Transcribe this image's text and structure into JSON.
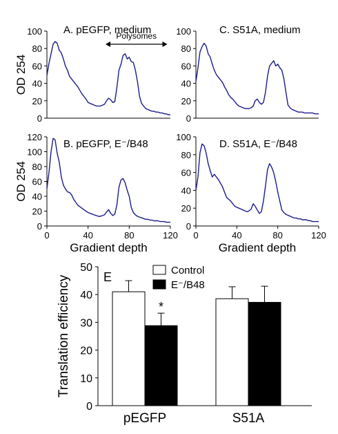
{
  "chart_data": [
    {
      "panel": "A",
      "type": "line",
      "title": "A. pEGFP, medium",
      "ylabel": "OD 254",
      "xlabel": "",
      "xlim": [
        0,
        120
      ],
      "ylim": [
        0,
        100
      ],
      "yticks": [
        0,
        20,
        40,
        60,
        80,
        100
      ],
      "xticks": [],
      "annotation": "Polysomes",
      "annotation_range": [
        57,
        117
      ],
      "line_color": "#1a1a8c",
      "x": [
        0,
        2,
        4,
        6,
        8,
        10,
        12,
        14,
        16,
        18,
        20,
        22,
        24,
        26,
        28,
        30,
        32,
        34,
        36,
        38,
        40,
        42,
        44,
        46,
        48,
        50,
        52,
        54,
        56,
        58,
        60,
        62,
        64,
        66,
        68,
        70,
        72,
        74,
        76,
        78,
        80,
        82,
        84,
        86,
        88,
        90,
        92,
        94,
        96,
        98,
        100,
        102,
        104,
        106,
        108,
        110,
        112,
        114,
        116,
        118,
        120
      ],
      "y": [
        49,
        63,
        74,
        85,
        88,
        86,
        78,
        75,
        68,
        60,
        55,
        48,
        45,
        42,
        39,
        36,
        32,
        28,
        25,
        22,
        18,
        17,
        16,
        15,
        14,
        14,
        14,
        15,
        16,
        20,
        23,
        21,
        18,
        19,
        35,
        55,
        62,
        72,
        74,
        68,
        70,
        65,
        64,
        55,
        42,
        25,
        17,
        14,
        11,
        10,
        9,
        8,
        8,
        7,
        7,
        6,
        6,
        5,
        5,
        4,
        4
      ]
    },
    {
      "panel": "C",
      "type": "line",
      "title": "C. S51A, medium",
      "ylabel": "",
      "xlabel": "",
      "xlim": [
        0,
        120
      ],
      "ylim": [
        0,
        100
      ],
      "yticks": [
        0,
        20,
        40,
        60,
        80,
        100
      ],
      "xticks": [],
      "line_color": "#1a1a8c",
      "x": [
        0,
        2,
        4,
        6,
        8,
        10,
        12,
        14,
        16,
        18,
        20,
        22,
        24,
        26,
        28,
        30,
        32,
        34,
        36,
        38,
        40,
        42,
        44,
        46,
        48,
        50,
        52,
        54,
        56,
        58,
        60,
        62,
        64,
        66,
        68,
        70,
        72,
        74,
        76,
        78,
        80,
        82,
        84,
        86,
        88,
        90,
        92,
        94,
        96,
        98,
        100,
        102,
        104,
        106,
        108,
        110,
        112,
        114,
        116,
        118,
        120
      ],
      "y": [
        42,
        58,
        76,
        82,
        86,
        83,
        74,
        70,
        62,
        55,
        50,
        47,
        44,
        41,
        36,
        32,
        27,
        24,
        22,
        19,
        16,
        14,
        13,
        12,
        11,
        11,
        11,
        12,
        14,
        20,
        22,
        18,
        16,
        18,
        30,
        48,
        60,
        63,
        66,
        60,
        62,
        58,
        55,
        45,
        30,
        15,
        12,
        10,
        9,
        8,
        7,
        7,
        7,
        6,
        6,
        6,
        6,
        6,
        5,
        5,
        5
      ]
    },
    {
      "panel": "B",
      "type": "line",
      "title": "B. pEGFP, E⁻/B48",
      "ylabel": "OD 254",
      "xlabel": "Gradient depth",
      "xlim": [
        0,
        120
      ],
      "ylim": [
        0,
        120
      ],
      "yticks": [
        0,
        20,
        40,
        60,
        80,
        100,
        120
      ],
      "xticks": [
        0,
        40,
        80,
        120
      ],
      "line_color": "#1a1a8c",
      "x": [
        0,
        2,
        4,
        6,
        8,
        10,
        12,
        14,
        16,
        18,
        20,
        22,
        24,
        26,
        28,
        30,
        32,
        34,
        36,
        38,
        40,
        42,
        44,
        46,
        48,
        50,
        52,
        54,
        56,
        58,
        60,
        62,
        64,
        66,
        68,
        70,
        72,
        74,
        76,
        78,
        80,
        82,
        84,
        86,
        88,
        90,
        92,
        94,
        96,
        98,
        100,
        102,
        104,
        106,
        108,
        110,
        112,
        114,
        116,
        118,
        120
      ],
      "y": [
        50,
        72,
        100,
        118,
        116,
        98,
        86,
        66,
        55,
        50,
        46,
        45,
        42,
        36,
        32,
        28,
        26,
        24,
        22,
        20,
        18,
        17,
        16,
        15,
        14,
        13,
        13,
        14,
        15,
        19,
        22,
        17,
        14,
        16,
        28,
        52,
        62,
        64,
        58,
        48,
        40,
        25,
        18,
        15,
        13,
        12,
        11,
        10,
        9,
        9,
        8,
        8,
        7,
        7,
        7,
        6,
        6,
        6,
        5,
        5,
        5
      ]
    },
    {
      "panel": "D",
      "type": "line",
      "title": "D. S51A, E⁻/B48",
      "ylabel": "",
      "xlabel": "Gradient depth",
      "xlim": [
        0,
        120
      ],
      "ylim": [
        0,
        100
      ],
      "yticks": [
        0,
        20,
        40,
        60,
        80,
        100
      ],
      "xticks": [
        0,
        40,
        80,
        120
      ],
      "line_color": "#1a1a8c",
      "x": [
        0,
        2,
        4,
        6,
        8,
        10,
        12,
        14,
        16,
        18,
        20,
        22,
        24,
        26,
        28,
        30,
        32,
        34,
        36,
        38,
        40,
        42,
        44,
        46,
        48,
        50,
        52,
        54,
        56,
        58,
        60,
        62,
        64,
        66,
        68,
        70,
        72,
        74,
        76,
        78,
        80,
        82,
        84,
        86,
        88,
        90,
        92,
        94,
        96,
        98,
        100,
        102,
        104,
        106,
        108,
        110,
        112,
        114,
        116,
        118,
        120
      ],
      "y": [
        40,
        55,
        82,
        92,
        90,
        82,
        70,
        62,
        55,
        58,
        55,
        52,
        48,
        44,
        38,
        32,
        30,
        28,
        25,
        22,
        21,
        20,
        19,
        18,
        17,
        16,
        17,
        19,
        25,
        22,
        18,
        14,
        16,
        28,
        45,
        63,
        70,
        66,
        60,
        50,
        38,
        28,
        18,
        15,
        13,
        12,
        11,
        10,
        9,
        9,
        8,
        8,
        7,
        7,
        7,
        6,
        6,
        5,
        5,
        5,
        5
      ]
    },
    {
      "panel": "E",
      "type": "bar",
      "title": "E",
      "ylabel": "Translation efficiency",
      "xlabel": "",
      "categories": [
        "pEGFP",
        "S51A"
      ],
      "ylim": [
        0,
        50
      ],
      "yticks": [
        0,
        10,
        20,
        30,
        40,
        50
      ],
      "legend_position": "top",
      "series": [
        {
          "name": "Control",
          "values": [
            41,
            38.5
          ],
          "errors": [
            4,
            4.3
          ],
          "fill": "#ffffff"
        },
        {
          "name": "E⁻/B48",
          "values": [
            28.8,
            37.2
          ],
          "errors": [
            4.5,
            5.8
          ],
          "fill": "#000000"
        }
      ],
      "significance": [
        {
          "category": "pEGFP",
          "series": "E⁻/B48",
          "label": "*"
        }
      ]
    }
  ]
}
